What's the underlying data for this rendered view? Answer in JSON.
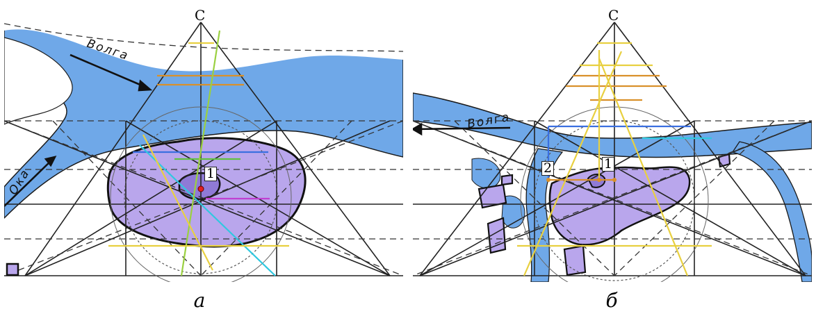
{
  "panels": [
    {
      "id": "a",
      "apex_label": "C",
      "river_labels": {
        "main": "Волга",
        "secondary": "Ока"
      },
      "point_labels": [
        "1"
      ],
      "caption": "а"
    },
    {
      "id": "b",
      "apex_label": "C",
      "river_labels": {
        "main": "Волга"
      },
      "point_labels": [
        "2",
        "1"
      ],
      "caption": "б"
    }
  ],
  "colors": {
    "water": "#6fa8e8",
    "city_fill": "#b9a6ec",
    "lines": "#222222",
    "accent_yellow": "#e8d040",
    "accent_orange": "#d9902a",
    "accent_blue": "#3a6fe0",
    "accent_cyan": "#30c8e0",
    "accent_green": "#60c040",
    "accent_magenta": "#c040d0",
    "point_red": "#e02020"
  }
}
